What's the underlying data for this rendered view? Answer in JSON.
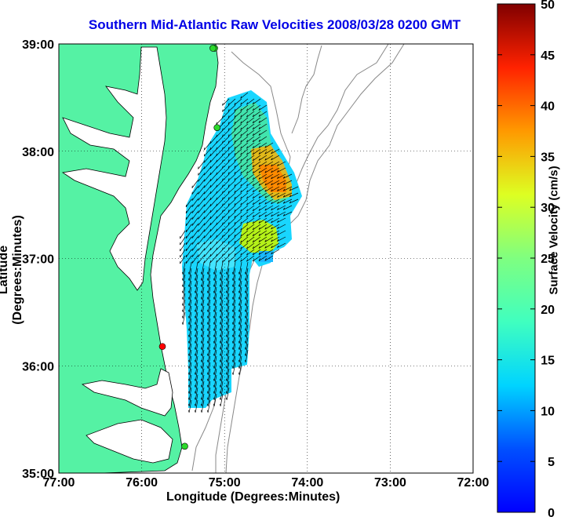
{
  "title": "Southern Mid-Atlantic Raw Velocities 2008/03/28 0200 GMT",
  "xlabel": "Longitude (Degrees:Minutes)",
  "ylabel": "Latitude (Degrees:Minutes)",
  "colorbar": {
    "label": "Surface Velocity (cm/s)",
    "min": 0,
    "max": 50,
    "ticks": [
      "0",
      "5",
      "10",
      "15",
      "20",
      "25",
      "30",
      "35",
      "40",
      "45",
      "50"
    ]
  },
  "map": {
    "x_ticks": [
      "77:00",
      "76:00",
      "75:00",
      "74:00",
      "73:00",
      "72:00"
    ],
    "y_ticks": [
      "39:00",
      "38:00",
      "37:00",
      "36:00",
      "35:00"
    ],
    "lon_range": [
      -77,
      -72
    ],
    "lat_range": [
      35,
      39
    ],
    "grid": true,
    "colors": {
      "land": "#55f2a4",
      "contour": "#888888",
      "title": "#0000e6"
    },
    "stations": [
      {
        "lon": -75.12,
        "lat": 38.96,
        "color": "#2bd92b"
      },
      {
        "lon": -75.14,
        "lat": 38.96,
        "color": "#2bd92b"
      },
      {
        "lon": -75.09,
        "lat": 38.22,
        "color": "#2bd92b"
      },
      {
        "lon": -75.75,
        "lat": 36.18,
        "color": "#ff0000"
      },
      {
        "lon": -75.48,
        "lat": 35.25,
        "color": "#2bd92b"
      }
    ]
  }
}
